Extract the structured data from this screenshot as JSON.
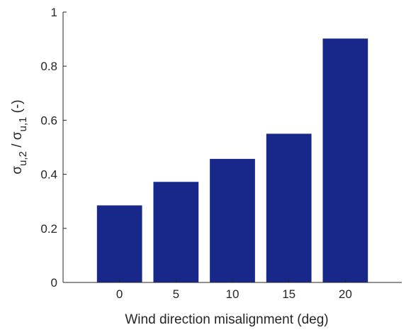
{
  "chart_data": {
    "type": "bar",
    "categories": [
      "0",
      "5",
      "10",
      "15",
      "20"
    ],
    "values": [
      0.285,
      0.372,
      0.457,
      0.55,
      0.902
    ],
    "xlabel": "Wind direction misalignment (deg)",
    "ylabel": {
      "sigma1": "σ",
      "sub1": "u,2",
      "slash": " / ",
      "sigma2": "σ",
      "sub2": "u,1",
      "unit": " (-)"
    },
    "ylim": [
      0,
      1
    ],
    "yticks": [
      "0",
      "0.2",
      "0.4",
      "0.6",
      "0.8",
      "1"
    ],
    "bar_color": "#17288a",
    "grid": false
  }
}
